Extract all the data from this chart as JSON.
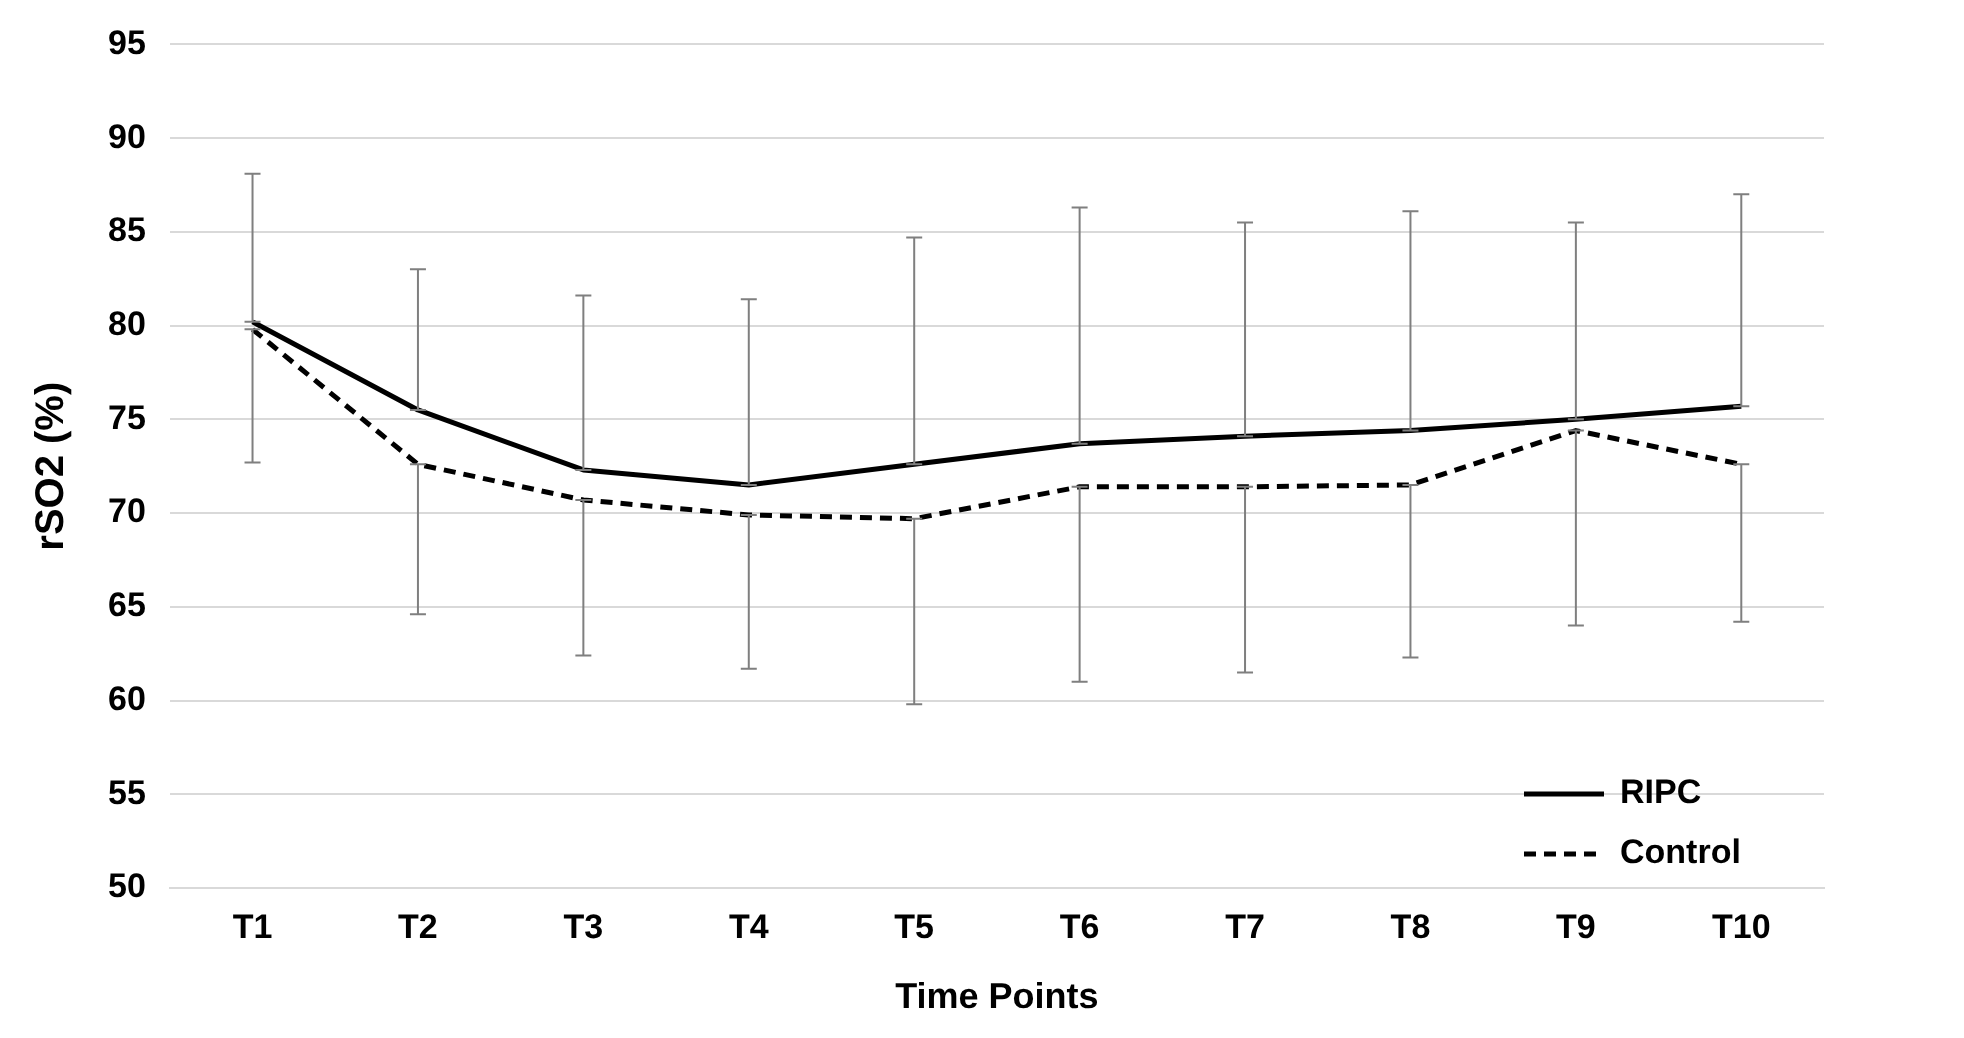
{
  "chart_data": {
    "type": "line",
    "xlabel": "Time Points",
    "ylabel": "rSO2 (%)",
    "categories": [
      "T1",
      "T2",
      "T3",
      "T4",
      "T5",
      "T6",
      "T7",
      "T8",
      "T9",
      "T10"
    ],
    "ylim": [
      50,
      95
    ],
    "yticks": [
      50,
      55,
      60,
      65,
      70,
      75,
      80,
      85,
      90,
      95
    ],
    "grid": "y",
    "legend": "bottom right",
    "marker": "none",
    "series": [
      {
        "name": "RIPC",
        "color": "#000000",
        "line_style": "solid",
        "values": [
          80.2,
          75.5,
          72.3,
          71.5,
          72.6,
          73.7,
          74.1,
          74.4,
          75.0,
          75.7
        ],
        "errors": [
          [
            80.2,
            88.1
          ],
          [
            75.5,
            83.0
          ],
          [
            72.3,
            81.6
          ],
          [
            71.5,
            81.4
          ],
          [
            72.6,
            84.7
          ],
          [
            73.7,
            86.3
          ],
          [
            74.1,
            85.5
          ],
          [
            74.4,
            86.1
          ],
          [
            75.0,
            85.5
          ],
          [
            75.7,
            87.0
          ]
        ]
      },
      {
        "name": "Control",
        "color": "#000000",
        "line_style": "dashed",
        "values": [
          79.8,
          72.6,
          70.7,
          69.9,
          69.7,
          71.4,
          71.4,
          71.5,
          74.4,
          72.6
        ],
        "errors": [
          [
            72.7,
            79.8
          ],
          [
            64.6,
            72.6
          ],
          [
            62.4,
            70.7
          ],
          [
            61.7,
            69.9
          ],
          [
            59.8,
            69.7
          ],
          [
            61.0,
            71.4
          ],
          [
            61.5,
            71.4
          ],
          [
            62.3,
            71.5
          ],
          [
            64.0,
            74.4
          ],
          [
            64.2,
            72.6
          ]
        ]
      }
    ]
  }
}
